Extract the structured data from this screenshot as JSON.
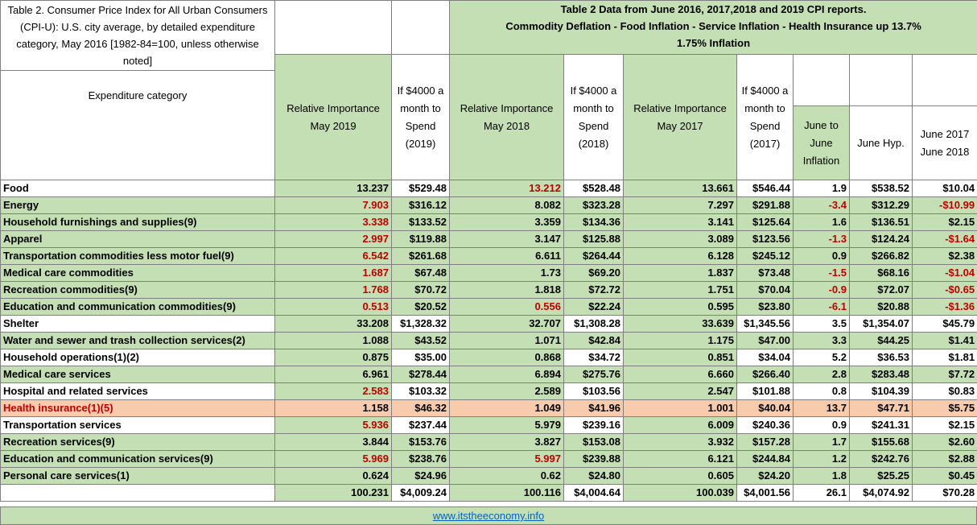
{
  "title_left": "Table 2. Consumer Price Index for All Urban Consumers (CPI-U): U.S. city average, by detailed expenditure category, May 2016 [1982-84=100, unless otherwise noted]",
  "title_right": {
    "line1": "Table 2 Data from June 2016, 2017,2018 and 2019 CPI reports.",
    "line2": "Commodity Deflation - Food Inflation - Service Inflation - Health Insurance up 13.7%",
    "line3": "1.75% Inflation"
  },
  "headers": {
    "category": "Expenditure category",
    "ri2019": "Relative Importance May 2019",
    "sp2019": "If $4000 a month to Spend (2019)",
    "ri2018": "Relative Importance May 2018",
    "sp2018": "If $4000 a month to Spend (2018)",
    "ri2017": "Relative Importance May 2017",
    "sp2017": "If $4000 a month to Spend (2017)",
    "j2j": "June to June Inflation",
    "hyp": "June Hyp.",
    "j1718": "June 2017 June 2018"
  },
  "rows": [
    {
      "label": "Food",
      "ri2019": "13.237",
      "sp2019": "$529.48",
      "ri2018": "13.212",
      "sp2018": "$528.48",
      "ri2017": "13.661",
      "sp2017": "$546.44",
      "j2j": "1.9",
      "hyp": "$538.52",
      "j1718": "$10.04"
    },
    {
      "label": "Energy",
      "ri2019": "7.903",
      "sp2019": "$316.12",
      "ri2018": "8.082",
      "sp2018": "$323.28",
      "ri2017": "7.297",
      "sp2017": "$291.88",
      "j2j": "-3.4",
      "hyp": "$312.29",
      "j1718": "-$10.99"
    },
    {
      "label": "Household furnishings and supplies(9)",
      "ri2019": "3.338",
      "sp2019": "$133.52",
      "ri2018": "3.359",
      "sp2018": "$134.36",
      "ri2017": "3.141",
      "sp2017": "$125.64",
      "j2j": "1.6",
      "hyp": "$136.51",
      "j1718": "$2.15"
    },
    {
      "label": "Apparel",
      "ri2019": "2.997",
      "sp2019": "$119.88",
      "ri2018": "3.147",
      "sp2018": "$125.88",
      "ri2017": "3.089",
      "sp2017": "$123.56",
      "j2j": "-1.3",
      "hyp": "$124.24",
      "j1718": "-$1.64"
    },
    {
      "label": "Transportation commodities less motor fuel(9)",
      "ri2019": "6.542",
      "sp2019": "$261.68",
      "ri2018": "6.611",
      "sp2018": "$264.44",
      "ri2017": "6.128",
      "sp2017": "$245.12",
      "j2j": "0.9",
      "hyp": "$266.82",
      "j1718": "$2.38"
    },
    {
      "label": "Medical care commodities",
      "ri2019": "1.687",
      "sp2019": "$67.48",
      "ri2018": "1.73",
      "sp2018": "$69.20",
      "ri2017": "1.837",
      "sp2017": "$73.48",
      "j2j": "-1.5",
      "hyp": "$68.16",
      "j1718": "-$1.04"
    },
    {
      "label": "Recreation commodities(9)",
      "ri2019": "1.768",
      "sp2019": "$70.72",
      "ri2018": "1.818",
      "sp2018": "$72.72",
      "ri2017": "1.751",
      "sp2017": "$70.04",
      "j2j": "-0.9",
      "hyp": "$72.07",
      "j1718": "-$0.65"
    },
    {
      "label": "Education and communication commodities(9)",
      "ri2019": "0.513",
      "sp2019": "$20.52",
      "ri2018": "0.556",
      "sp2018": "$22.24",
      "ri2017": "0.595",
      "sp2017": "$23.80",
      "j2j": "-6.1",
      "hyp": "$20.88",
      "j1718": "-$1.36"
    },
    {
      "label": "Shelter",
      "ri2019": "33.208",
      "sp2019": "$1,328.32",
      "ri2018": "32.707",
      "sp2018": "$1,308.28",
      "ri2017": "33.639",
      "sp2017": "$1,345.56",
      "j2j": "3.5",
      "hyp": "$1,354.07",
      "j1718": "$45.79"
    },
    {
      "label": "Water and sewer and trash collection services(2)",
      "ri2019": "1.088",
      "sp2019": "$43.52",
      "ri2018": "1.071",
      "sp2018": "$42.84",
      "ri2017": "1.175",
      "sp2017": "$47.00",
      "j2j": "3.3",
      "hyp": "$44.25",
      "j1718": "$1.41"
    },
    {
      "label": "Household operations(1)(2)",
      "ri2019": "0.875",
      "sp2019": "$35.00",
      "ri2018": "0.868",
      "sp2018": "$34.72",
      "ri2017": "0.851",
      "sp2017": "$34.04",
      "j2j": "5.2",
      "hyp": "$36.53",
      "j1718": "$1.81"
    },
    {
      "label": "Medical care services",
      "ri2019": "6.961",
      "sp2019": "$278.44",
      "ri2018": "6.894",
      "sp2018": "$275.76",
      "ri2017": "6.660",
      "sp2017": "$266.40",
      "j2j": "2.8",
      "hyp": "$283.48",
      "j1718": "$7.72"
    },
    {
      "label": "Hospital and related services",
      "ri2019": "2.583",
      "sp2019": "$103.32",
      "ri2018": "2.589",
      "sp2018": "$103.56",
      "ri2017": "2.547",
      "sp2017": "$101.88",
      "j2j": "0.8",
      "hyp": "$104.39",
      "j1718": "$0.83"
    },
    {
      "label": "Health insurance(1)(5)",
      "ri2019": "1.158",
      "sp2019": "$46.32",
      "ri2018": "1.049",
      "sp2018": "$41.96",
      "ri2017": "1.001",
      "sp2017": "$40.04",
      "j2j": "13.7",
      "hyp": "$47.71",
      "j1718": "$5.75"
    },
    {
      "label": "Transportation services",
      "ri2019": "5.936",
      "sp2019": "$237.44",
      "ri2018": "5.979",
      "sp2018": "$239.16",
      "ri2017": "6.009",
      "sp2017": "$240.36",
      "j2j": "0.9",
      "hyp": "$241.31",
      "j1718": "$2.15"
    },
    {
      "label": "Recreation services(9)",
      "ri2019": "3.844",
      "sp2019": "$153.76",
      "ri2018": "3.827",
      "sp2018": "$153.08",
      "ri2017": "3.932",
      "sp2017": "$157.28",
      "j2j": "1.7",
      "hyp": "$155.68",
      "j1718": "$2.60"
    },
    {
      "label": "Education and communication services(9)",
      "ri2019": "5.969",
      "sp2019": "$238.76",
      "ri2018": "5.997",
      "sp2018": "$239.88",
      "ri2017": "6.121",
      "sp2017": "$244.84",
      "j2j": "1.2",
      "hyp": "$242.76",
      "j1718": "$2.88"
    },
    {
      "label": "Personal care services(1)",
      "ri2019": "0.624",
      "sp2019": "$24.96",
      "ri2018": "0.62",
      "sp2018": "$24.80",
      "ri2017": "0.605",
      "sp2017": "$24.20",
      "j2j": "1.8",
      "hyp": "$25.25",
      "j1718": "$0.45"
    }
  ],
  "totals": {
    "ri2019": "100.231",
    "sp2019": "$4,009.24",
    "ri2018": "100.116",
    "sp2018": "$4,004.64",
    "ri2017": "100.039",
    "sp2017": "$4,001.56",
    "j2j": "26.1",
    "hyp": "$4,074.92",
    "j1718": "$70.28"
  },
  "footer_link": "www.itstheeconomy.info",
  "colors": {
    "green_fill": "#c5dfb4",
    "orange_fill": "#f8cbad",
    "red_text": "#c00000",
    "link_blue": "#0563c1"
  }
}
